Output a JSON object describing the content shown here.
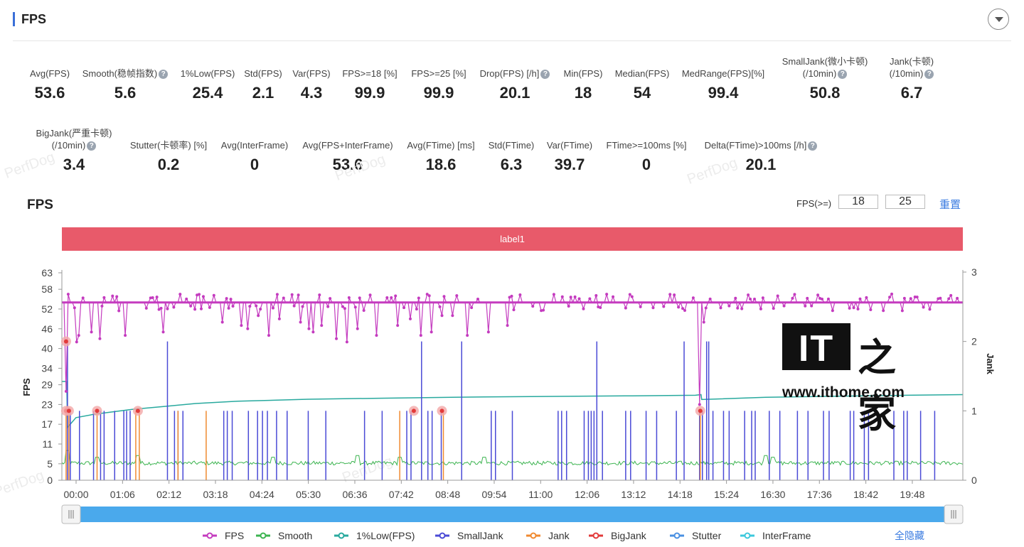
{
  "header": {
    "title": "FPS"
  },
  "stats_row1": [
    {
      "label": "Avg(FPS)",
      "value": "53.6",
      "help": false
    },
    {
      "label": "Smooth(稳帧指数)",
      "value": "5.6",
      "help": true
    },
    {
      "label": "1%Low(FPS)",
      "value": "25.4",
      "help": false
    },
    {
      "label": "Std(FPS)",
      "value": "2.1",
      "help": false
    },
    {
      "label": "Var(FPS)",
      "value": "4.3",
      "help": false
    },
    {
      "label": "FPS>=18 [%]",
      "value": "99.9",
      "help": false
    },
    {
      "label": "FPS>=25 [%]",
      "value": "99.9",
      "help": false
    },
    {
      "label": "Drop(FPS) [/h]",
      "value": "20.1",
      "help": true
    },
    {
      "label": "Min(FPS)",
      "value": "18",
      "help": false
    },
    {
      "label": "Median(FPS)",
      "value": "54",
      "help": false
    },
    {
      "label": "MedRange(FPS)[%]",
      "value": "99.4",
      "help": false
    },
    {
      "label": "SmallJank(微小卡顿)",
      "label2": "(/10min)",
      "value": "50.8",
      "help": true
    },
    {
      "label": "Jank(卡顿)",
      "label2": "(/10min)",
      "value": "6.7",
      "help": true
    }
  ],
  "stats_row2": [
    {
      "label": "BigJank(严重卡顿)",
      "label2": "(/10min)",
      "value": "3.4",
      "help": true
    },
    {
      "label": "Stutter(卡顿率) [%]",
      "value": "0.2",
      "help": false
    },
    {
      "label": "Avg(InterFrame)",
      "value": "0",
      "help": false
    },
    {
      "label": "Avg(FPS+InterFrame)",
      "value": "53.6",
      "help": false
    },
    {
      "label": "Avg(FTime) [ms]",
      "value": "18.6",
      "help": false
    },
    {
      "label": "Std(FTime)",
      "value": "6.3",
      "help": false
    },
    {
      "label": "Var(FTime)",
      "value": "39.7",
      "help": false
    },
    {
      "label": "FTime>=100ms [%]",
      "value": "0",
      "help": false
    },
    {
      "label": "Delta(FTime)>100ms [/h]",
      "value": "20.1",
      "help": true
    }
  ],
  "watermark": "PerfDog",
  "chart_header": {
    "title": "FPS",
    "threshold_label": "FPS(>=)",
    "threshold_1": "18",
    "threshold_2": "25",
    "reset": "重置"
  },
  "label_band": "label1",
  "logo": {
    "mark": "IT",
    "han": "之家",
    "url": "www.ithome.com"
  },
  "legend_toggle": "全隐藏",
  "colors": {
    "FPS": "#c43bbf",
    "Smooth": "#3cb450",
    "1%Low(FPS)": "#28a99e",
    "SmallJank": "#4a4ad6",
    "Jank": "#f08a30",
    "BigJank": "#e23a3a",
    "Stutter": "#4a90e2",
    "InterFrame": "#3cc8dc"
  },
  "chart_data": {
    "type": "line",
    "x_ticks": [
      "00:00",
      "01:06",
      "02:12",
      "03:18",
      "04:24",
      "05:30",
      "06:36",
      "07:42",
      "08:48",
      "09:54",
      "11:00",
      "12:06",
      "13:12",
      "14:18",
      "15:24",
      "16:30",
      "17:36",
      "18:42",
      "19:48"
    ],
    "x_range_seconds": [
      0,
      1280
    ],
    "y_left": {
      "label": "FPS",
      "ticks": [
        0,
        5,
        11,
        17,
        23,
        29,
        34,
        40,
        46,
        52,
        58,
        63
      ],
      "range": [
        0,
        63
      ]
    },
    "y_right": {
      "label": "Jank",
      "ticks": [
        0,
        1,
        2,
        3
      ],
      "range": [
        0,
        3
      ]
    },
    "legend": [
      "FPS",
      "Smooth",
      "1%Low(FPS)",
      "SmallJank",
      "Jank",
      "BigJank",
      "Stutter",
      "InterFrame"
    ],
    "series": [
      {
        "name": "FPS",
        "axis": "left",
        "baseline": 54,
        "noise": 1.6,
        "dips": [
          [
            5,
            38
          ],
          [
            7,
            27
          ],
          [
            20,
            42
          ],
          [
            25,
            44
          ],
          [
            42,
            45
          ],
          [
            55,
            43
          ],
          [
            90,
            44
          ],
          [
            145,
            45
          ],
          [
            228,
            48
          ],
          [
            255,
            47
          ],
          [
            265,
            46
          ],
          [
            278,
            50
          ],
          [
            295,
            44
          ],
          [
            310,
            49
          ],
          [
            338,
            48
          ],
          [
            352,
            46
          ],
          [
            358,
            45
          ],
          [
            368,
            47
          ],
          [
            390,
            43
          ],
          [
            405,
            42
          ],
          [
            420,
            46
          ],
          [
            448,
            44
          ],
          [
            476,
            47
          ],
          [
            495,
            49
          ],
          [
            510,
            44
          ],
          [
            525,
            45
          ],
          [
            540,
            50
          ],
          [
            556,
            50
          ],
          [
            575,
            44
          ],
          [
            606,
            45
          ],
          [
            632,
            47
          ],
          [
            905,
            23
          ],
          [
            912,
            48
          ]
        ]
      },
      {
        "name": "1%Low(FPS)",
        "axis": "left",
        "points": [
          [
            0,
            30
          ],
          [
            7,
            30
          ],
          [
            8,
            16
          ],
          [
            20,
            19
          ],
          [
            45,
            20
          ],
          [
            80,
            21
          ],
          [
            100,
            21.5
          ],
          [
            150,
            22.5
          ],
          [
            190,
            23.3
          ],
          [
            250,
            24
          ],
          [
            350,
            24.6
          ],
          [
            450,
            24.9
          ],
          [
            600,
            25.3
          ],
          [
            800,
            25.6
          ],
          [
            900,
            25.8
          ],
          [
            908,
            26
          ],
          [
            909,
            24.5
          ],
          [
            1000,
            25.2
          ],
          [
            1100,
            25.5
          ],
          [
            1200,
            25.8
          ],
          [
            1280,
            26
          ]
        ]
      },
      {
        "name": "Smooth",
        "axis": "left",
        "baseline": 5.2,
        "noise": 0.6,
        "bumps": [
          [
            8,
            9
          ],
          [
            50,
            7
          ],
          [
            108,
            7.5
          ],
          [
            300,
            7
          ],
          [
            420,
            7.5
          ],
          [
            480,
            7
          ],
          [
            600,
            7
          ],
          [
            1000,
            7.5
          ],
          [
            1010,
            7
          ]
        ]
      },
      {
        "name": "SmallJank",
        "axis": "right",
        "spikes": [
          [
            8,
            2
          ],
          [
            12,
            1
          ],
          [
            25,
            1
          ],
          [
            45,
            1
          ],
          [
            55,
            1
          ],
          [
            60,
            1
          ],
          [
            75,
            1
          ],
          [
            88,
            1
          ],
          [
            92,
            1
          ],
          [
            97,
            1
          ],
          [
            150,
            2
          ],
          [
            160,
            1
          ],
          [
            165,
            1
          ],
          [
            172,
            1
          ],
          [
            230,
            1
          ],
          [
            235,
            1
          ],
          [
            242,
            1
          ],
          [
            265,
            1
          ],
          [
            278,
            1
          ],
          [
            285,
            1
          ],
          [
            292,
            1
          ],
          [
            305,
            1
          ],
          [
            320,
            1
          ],
          [
            350,
            1
          ],
          [
            375,
            1
          ],
          [
            430,
            1
          ],
          [
            455,
            1
          ],
          [
            490,
            1
          ],
          [
            496,
            1
          ],
          [
            511,
            2
          ],
          [
            520,
            1
          ],
          [
            526,
            1
          ],
          [
            539,
            1
          ],
          [
            568,
            2
          ],
          [
            610,
            1
          ],
          [
            616,
            1
          ],
          [
            640,
            1
          ],
          [
            705,
            1
          ],
          [
            710,
            1
          ],
          [
            717,
            1
          ],
          [
            742,
            1
          ],
          [
            748,
            1
          ],
          [
            752,
            1
          ],
          [
            756,
            1
          ],
          [
            760,
            2
          ],
          [
            768,
            1
          ],
          [
            801,
            1
          ],
          [
            808,
            1
          ],
          [
            830,
            1
          ],
          [
            845,
            1
          ],
          [
            873,
            1
          ],
          [
            884,
            2
          ],
          [
            906,
            1
          ],
          [
            910,
            1
          ],
          [
            916,
            2
          ],
          [
            919,
            2
          ],
          [
            925,
            1
          ],
          [
            940,
            1
          ],
          [
            948,
            1
          ],
          [
            970,
            1
          ],
          [
            980,
            1
          ],
          [
            985,
            1
          ],
          [
            1005,
            1
          ],
          [
            1020,
            1
          ],
          [
            1045,
            1
          ],
          [
            1060,
            1
          ],
          [
            1082,
            1
          ],
          [
            1090,
            1
          ],
          [
            1120,
            1
          ],
          [
            1125,
            1
          ],
          [
            1140,
            1
          ],
          [
            1146,
            1
          ],
          [
            1182,
            1
          ],
          [
            1196,
            1
          ],
          [
            1201,
            1
          ],
          [
            1220,
            1
          ],
          [
            1240,
            1
          ]
        ]
      },
      {
        "name": "Jank",
        "axis": "right",
        "spikes": [
          [
            6,
            1
          ],
          [
            10,
            1
          ],
          [
            50,
            1
          ],
          [
            105,
            1
          ],
          [
            110,
            1
          ],
          [
            165,
            1
          ],
          [
            205,
            1
          ],
          [
            480,
            1
          ],
          [
            542,
            1
          ],
          [
            907,
            1
          ]
        ]
      },
      {
        "name": "BigJank",
        "axis": "right",
        "markers": [
          [
            6,
            2
          ],
          [
            6,
            1
          ],
          [
            10,
            1
          ],
          [
            50,
            1
          ],
          [
            108,
            1
          ],
          [
            500,
            1
          ],
          [
            540,
            1
          ],
          [
            907,
            1
          ]
        ]
      },
      {
        "name": "Stutter",
        "axis": "right",
        "values": []
      },
      {
        "name": "InterFrame",
        "axis": "right",
        "values": []
      }
    ]
  }
}
